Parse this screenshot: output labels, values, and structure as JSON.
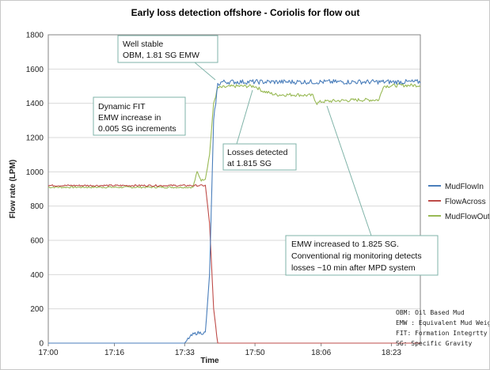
{
  "chart_data": {
    "type": "line",
    "title": "Early loss detection offshore - Coriolis for flow out",
    "xlabel": "Time",
    "ylabel": "Flow rate (LPM)",
    "ylim": [
      0,
      1800
    ],
    "yticks": [
      0,
      200,
      400,
      600,
      800,
      1000,
      1200,
      1400,
      1600,
      1800
    ],
    "xlim": [
      "17:00",
      "18:30"
    ],
    "xticks": [
      "17:00",
      "17:16",
      "17:33",
      "17:50",
      "18:06",
      "18:23"
    ],
    "grid": true,
    "legend_position": "right",
    "series": [
      {
        "name": "MudFlowIn",
        "color": "#4a7ebb",
        "points": [
          [
            "17:00",
            0
          ],
          [
            "17:33",
            0
          ],
          [
            "17:34",
            30
          ],
          [
            "17:35",
            50
          ],
          [
            "17:36",
            60
          ],
          [
            "17:37",
            60
          ],
          [
            "17:38",
            60
          ],
          [
            "17:39",
            400
          ],
          [
            "17:40",
            1300
          ],
          [
            "17:41",
            1510
          ],
          [
            "17:42",
            1525
          ],
          [
            "17:50",
            1525
          ],
          [
            "18:00",
            1525
          ],
          [
            "18:10",
            1525
          ],
          [
            "18:20",
            1525
          ],
          [
            "18:30",
            1525
          ]
        ]
      },
      {
        "name": "FlowAcross",
        "color": "#be4b48",
        "points": [
          [
            "17:00",
            920
          ],
          [
            "17:38",
            920
          ],
          [
            "17:39",
            700
          ],
          [
            "17:40",
            200
          ],
          [
            "17:41",
            0
          ],
          [
            "18:30",
            0
          ]
        ]
      },
      {
        "name": "MudFlowOut",
        "color": "#98b954",
        "points": [
          [
            "17:00",
            910
          ],
          [
            "17:35",
            910
          ],
          [
            "17:36",
            1000
          ],
          [
            "17:37",
            950
          ],
          [
            "17:38",
            960
          ],
          [
            "17:39",
            1100
          ],
          [
            "17:40",
            1400
          ],
          [
            "17:41",
            1490
          ],
          [
            "17:45",
            1500
          ],
          [
            "17:50",
            1500
          ],
          [
            "17:52",
            1470
          ],
          [
            "17:55",
            1450
          ],
          [
            "18:00",
            1450
          ],
          [
            "18:04",
            1445
          ],
          [
            "18:05",
            1400
          ],
          [
            "18:06",
            1410
          ],
          [
            "18:10",
            1415
          ],
          [
            "18:15",
            1420
          ],
          [
            "18:20",
            1420
          ],
          [
            "18:21",
            1500
          ],
          [
            "18:25",
            1505
          ],
          [
            "18:30",
            1505
          ]
        ]
      }
    ],
    "annotations": [
      {
        "lines": [
          "Well stable",
          "OBM, 1.81 SG EMW"
        ]
      },
      {
        "lines": [
          "Dynamic FIT",
          "EMW increase in",
          "0.005 SG increments"
        ]
      },
      {
        "lines": [
          "Losses detected",
          "at 1.815 SG"
        ]
      },
      {
        "lines": [
          "EMW increased to 1.825 SG.",
          "Conventional rig monitoring detects",
          "losses ~10 min after MPD system"
        ]
      }
    ],
    "notes": [
      "OBM: Oil Based Mud",
      "EMW : Equivalent Mud Weight",
      "FIT: Formation Integrtty Test",
      "SG: Specific Gravity"
    ]
  }
}
